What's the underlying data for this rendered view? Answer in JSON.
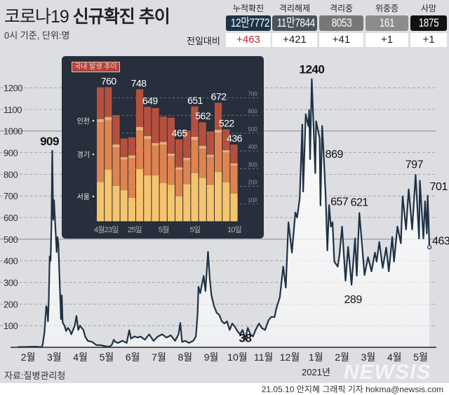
{
  "header": {
    "title_normal": "코로나19 ",
    "title_bold": "신규확진 추이",
    "subtitle": "0시 기준, 단위:명",
    "diff_label": "전일대비",
    "stats": [
      {
        "label": "누적확진",
        "value": "12만7772",
        "diff": "+463",
        "color": "#1d3447",
        "diff_color": "#c0262c"
      },
      {
        "label": "격리해제",
        "value": "11만7844",
        "diff": "+421",
        "color": "#4a535c",
        "diff_color": "#222222"
      },
      {
        "label": "격리중",
        "value": "8053",
        "diff": "+41",
        "color": "#777777",
        "diff_color": "#222222"
      },
      {
        "label": "위중증",
        "value": "161",
        "diff": "+1",
        "color": "#8c8c8c",
        "diff_color": "#222222"
      },
      {
        "label": "사망",
        "value": "1875",
        "diff": "+1",
        "color": "#111111",
        "diff_color": "#222222"
      }
    ]
  },
  "chart_data": [
    {
      "type": "line",
      "ylim": [
        0,
        1250
      ],
      "yticks": [
        "100",
        "200",
        "300",
        "400",
        "500",
        "600",
        "700",
        "800",
        "900",
        "1000",
        "1100",
        "1200"
      ],
      "xticks": [
        "2월",
        "3월",
        "4월",
        "5월",
        "6월",
        "7월",
        "8월",
        "9월",
        "10월",
        "11월",
        "12월",
        "1월",
        "2월",
        "3월",
        "4월",
        "5월"
      ],
      "year_label": "2021년",
      "grid": true,
      "line_color": "#1e3246",
      "points": [
        [
          "2020-01-20",
          1
        ],
        [
          "2020-02-01",
          2
        ],
        [
          "2020-02-10",
          3
        ],
        [
          "2020-02-17",
          1
        ],
        [
          "2020-02-18",
          15
        ],
        [
          "2020-02-20",
          70
        ],
        [
          "2020-02-22",
          190
        ],
        [
          "2020-02-23",
          180
        ],
        [
          "2020-02-24",
          120
        ],
        [
          "2020-02-25",
          230
        ],
        [
          "2020-02-26",
          420
        ],
        [
          "2020-02-27",
          400
        ],
        [
          "2020-02-28",
          560
        ],
        [
          "2020-02-29",
          909
        ],
        [
          "2020-03-01",
          590
        ],
        [
          "2020-03-02",
          680
        ],
        [
          "2020-03-03",
          600
        ],
        [
          "2020-03-04",
          520
        ],
        [
          "2020-03-05",
          440
        ],
        [
          "2020-03-06",
          510
        ],
        [
          "2020-03-07",
          480
        ],
        [
          "2020-03-08",
          360
        ],
        [
          "2020-03-09",
          250
        ],
        [
          "2020-03-10",
          130
        ],
        [
          "2020-03-11",
          240
        ],
        [
          "2020-03-12",
          115
        ],
        [
          "2020-03-14",
          100
        ],
        [
          "2020-03-16",
          75
        ],
        [
          "2020-03-18",
          90
        ],
        [
          "2020-03-20",
          80
        ],
        [
          "2020-03-22",
          60
        ],
        [
          "2020-03-24",
          80
        ],
        [
          "2020-03-26",
          100
        ],
        [
          "2020-03-28",
          145
        ],
        [
          "2020-03-30",
          80
        ],
        [
          "2020-04-01",
          100
        ],
        [
          "2020-04-03",
          90
        ],
        [
          "2020-04-05",
          80
        ],
        [
          "2020-04-07",
          50
        ],
        [
          "2020-04-10",
          30
        ],
        [
          "2020-04-15",
          25
        ],
        [
          "2020-04-20",
          10
        ],
        [
          "2020-04-25",
          10
        ],
        [
          "2020-04-30",
          5
        ],
        [
          "2020-05-05",
          3
        ],
        [
          "2020-05-08",
          12
        ],
        [
          "2020-05-10",
          35
        ],
        [
          "2020-05-12",
          25
        ],
        [
          "2020-05-15",
          20
        ],
        [
          "2020-05-20",
          30
        ],
        [
          "2020-05-25",
          20
        ],
        [
          "2020-05-28",
          79
        ],
        [
          "2020-05-30",
          40
        ],
        [
          "2020-06-03",
          50
        ],
        [
          "2020-06-07",
          45
        ],
        [
          "2020-06-10",
          50
        ],
        [
          "2020-06-15",
          35
        ],
        [
          "2020-06-20",
          60
        ],
        [
          "2020-06-25",
          30
        ],
        [
          "2020-06-30",
          50
        ],
        [
          "2020-07-05",
          60
        ],
        [
          "2020-07-10",
          45
        ],
        [
          "2020-07-15",
          55
        ],
        [
          "2020-07-20",
          30
        ],
        [
          "2020-07-24",
          60
        ],
        [
          "2020-07-26",
          113
        ],
        [
          "2020-07-28",
          25
        ],
        [
          "2020-08-01",
          30
        ],
        [
          "2020-08-05",
          20
        ],
        [
          "2020-08-10",
          30
        ],
        [
          "2020-08-13",
          50
        ],
        [
          "2020-08-14",
          100
        ],
        [
          "2020-08-15",
          160
        ],
        [
          "2020-08-16",
          280
        ],
        [
          "2020-08-18",
          250
        ],
        [
          "2020-08-20",
          290
        ],
        [
          "2020-08-22",
          330
        ],
        [
          "2020-08-24",
          260
        ],
        [
          "2020-08-27",
          441
        ],
        [
          "2020-08-29",
          320
        ],
        [
          "2020-08-31",
          240
        ],
        [
          "2020-09-03",
          190
        ],
        [
          "2020-09-06",
          160
        ],
        [
          "2020-09-09",
          150
        ],
        [
          "2020-09-12",
          120
        ],
        [
          "2020-09-15",
          110
        ],
        [
          "2020-09-18",
          120
        ],
        [
          "2020-09-21",
          80
        ],
        [
          "2020-09-24",
          110
        ],
        [
          "2020-09-27",
          95
        ],
        [
          "2020-09-30",
          75
        ],
        [
          "2020-10-03",
          60
        ],
        [
          "2020-10-06",
          80
        ],
        [
          "2020-10-09",
          38
        ],
        [
          "2020-10-12",
          90
        ],
        [
          "2020-10-15",
          60
        ],
        [
          "2020-10-18",
          50
        ],
        [
          "2020-10-21",
          80
        ],
        [
          "2020-10-25",
          110
        ],
        [
          "2020-10-28",
          90
        ],
        [
          "2020-11-01",
          80
        ],
        [
          "2020-11-05",
          125
        ],
        [
          "2020-11-08",
          140
        ],
        [
          "2020-11-12",
          140
        ],
        [
          "2020-11-14",
          180
        ],
        [
          "2020-11-18",
          230
        ],
        [
          "2020-11-22",
          373
        ],
        [
          "2020-11-25",
          276
        ],
        [
          "2020-11-28",
          578
        ],
        [
          "2020-12-02",
          438
        ],
        [
          "2020-12-06",
          623
        ],
        [
          "2020-12-08",
          600
        ],
        [
          "2020-12-11",
          688
        ],
        [
          "2020-12-14",
          1030
        ],
        [
          "2020-12-15",
          720
        ],
        [
          "2020-12-18",
          1078
        ],
        [
          "2020-12-21",
          1023
        ],
        [
          "2020-12-22",
          1097
        ],
        [
          "2020-12-23",
          870
        ],
        [
          "2020-12-25",
          1240
        ],
        [
          "2020-12-29",
          805
        ],
        [
          "2020-12-30",
          1045
        ],
        [
          "2021-01-03",
          968
        ],
        [
          "2021-01-04",
          656
        ],
        [
          "2021-01-06",
          1023
        ],
        [
          "2021-01-08",
          869
        ],
        [
          "2021-01-10",
          698
        ],
        [
          "2021-01-12",
          448
        ],
        [
          "2021-01-14",
          657
        ],
        [
          "2021-01-16",
          558
        ],
        [
          "2021-01-18",
          578
        ],
        [
          "2021-01-20",
          396
        ],
        [
          "2021-01-24",
          373
        ],
        [
          "2021-01-26",
          428
        ],
        [
          "2021-01-29",
          558
        ],
        [
          "2021-02-02",
          308
        ],
        [
          "2021-02-05",
          464
        ],
        [
          "2021-02-09",
          289
        ],
        [
          "2021-02-13",
          503
        ],
        [
          "2021-02-15",
          331
        ],
        [
          "2021-02-18",
          621
        ],
        [
          "2021-02-24",
          334
        ],
        [
          "2021-02-28",
          416
        ],
        [
          "2021-03-04",
          351
        ],
        [
          "2021-03-08",
          438
        ],
        [
          "2021-03-10",
          396
        ],
        [
          "2021-03-13",
          487
        ],
        [
          "2021-03-17",
          367
        ],
        [
          "2021-03-21",
          461
        ],
        [
          "2021-03-24",
          351
        ],
        [
          "2021-03-28",
          510
        ],
        [
          "2021-03-30",
          396
        ],
        [
          "2021-04-03",
          558
        ],
        [
          "2021-04-07",
          481
        ],
        [
          "2021-04-09",
          698
        ],
        [
          "2021-04-13",
          545
        ],
        [
          "2021-04-16",
          730
        ],
        [
          "2021-04-20",
          545
        ],
        [
          "2021-04-24",
          797
        ],
        [
          "2021-04-28",
          503
        ],
        [
          "2021-04-29",
          770
        ],
        [
          "2021-05-03",
          503
        ],
        [
          "2021-05-05",
          675
        ],
        [
          "2021-05-07",
          526
        ],
        [
          "2021-05-08",
          701
        ],
        [
          "2021-05-10",
          463
        ]
      ],
      "annotations": [
        {
          "label": "909",
          "date": "2020-02-29",
          "value": 909
        },
        {
          "label": "38",
          "date": "2020-10-09",
          "value": 38
        },
        {
          "label": "1240",
          "date": "2020-12-25",
          "value": 1240
        },
        {
          "label": "869",
          "date": "2021-01-08",
          "value": 869
        },
        {
          "label": "657",
          "date": "2021-01-14",
          "value": 657
        },
        {
          "label": "621",
          "date": "2021-02-18",
          "value": 621
        },
        {
          "label": "289",
          "date": "2021-02-09",
          "value": 289
        },
        {
          "label": "797",
          "date": "2021-04-24",
          "value": 797
        },
        {
          "label": "701",
          "date": "2021-05-08",
          "value": 701
        },
        {
          "label": "463",
          "date": "2021-05-10",
          "value": 463
        }
      ]
    },
    {
      "type": "bar",
      "stacked": true,
      "title": "국내 발생 추이",
      "yticks": [
        "100",
        "200",
        "300",
        "400",
        "500",
        "600",
        "700"
      ],
      "ylim": [
        0,
        780
      ],
      "xlabels": [
        {
          "label": "4월23일",
          "index": 0
        },
        {
          "label": "25일",
          "index": 2
        },
        {
          "label": "5월",
          "index": 8
        },
        {
          "label": "5일",
          "index": 12
        },
        {
          "label": "10일",
          "index": 17
        }
      ],
      "series_labels": [
        "서울",
        "경기",
        "인천"
      ],
      "colors": {
        "서울": "#f6c46e",
        "경기": "#df8350",
        "인천": "#e8b07a",
        "기타": "#b5503f"
      },
      "totals": [
        759,
        760,
        602,
        470,
        477,
        748,
        649,
        642,
        594,
        588,
        465,
        515,
        651,
        562,
        510,
        672,
        522,
        436
      ],
      "seoul": [
        225,
        295,
        202,
        178,
        136,
        297,
        262,
        262,
        218,
        209,
        143,
        213,
        275,
        248,
        209,
        281,
        222,
        159
      ],
      "gyeonggi": [
        338,
        277,
        218,
        172,
        222,
        218,
        204,
        167,
        218,
        161,
        150,
        134,
        187,
        164,
        156,
        221,
        169,
        158
      ],
      "incheon": [
        17,
        20,
        16,
        15,
        17,
        20,
        18,
        15,
        14,
        15,
        15,
        14,
        18,
        17,
        14,
        18,
        13,
        13
      ],
      "value_labels": [
        {
          "label": "760",
          "index": 1
        },
        {
          "label": "748",
          "index": 5
        },
        {
          "label": "649",
          "index": 6
        },
        {
          "label": "465",
          "index": 10
        },
        {
          "label": "651",
          "index": 12
        },
        {
          "label": "562",
          "index": 13
        },
        {
          "label": "672",
          "index": 15
        },
        {
          "label": "522",
          "index": 16
        },
        {
          "label": "436",
          "index": 17
        }
      ]
    }
  ],
  "footer": {
    "source": "자료:질병관리청",
    "watermark": "NEWSIS",
    "credit": "21.05.10 안지혜 그래픽 기자 hokma@newsis.com"
  }
}
